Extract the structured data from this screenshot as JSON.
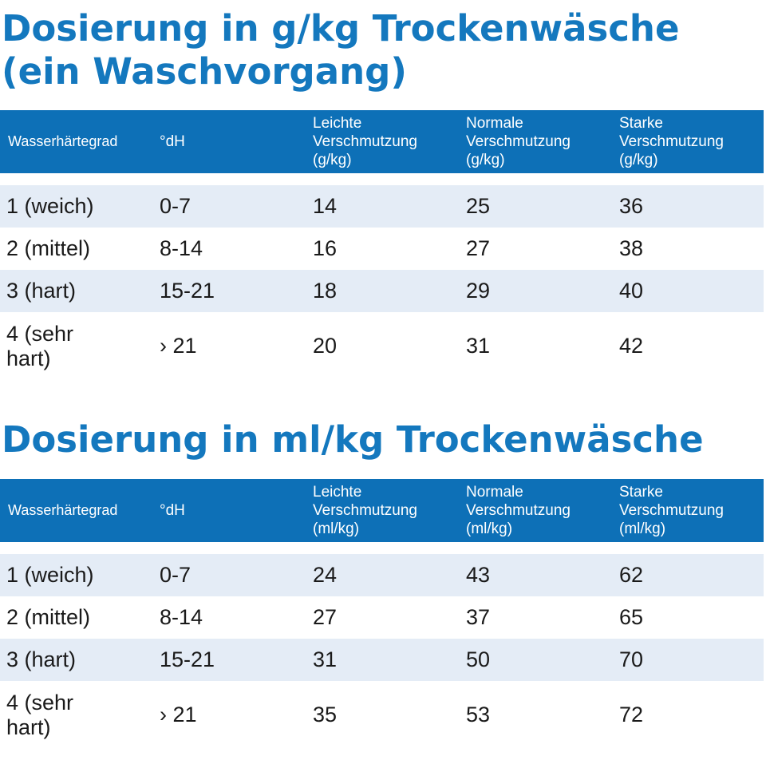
{
  "colors": {
    "accent": "#1478be",
    "header_bg": "#0d70b7",
    "row_shade": "#e4ecf6"
  },
  "sections": [
    {
      "title": "Dosierung in g/kg Trockenwäsche (ein Waschvorgang)",
      "headers": [
        "Wasserhärtegrad",
        "°dH",
        "Leichte\nVerschmutzung\n(g/kg)",
        "Normale\nVerschmutzung\n(g/kg)",
        "Starke\nVerschmutzung\n(g/kg)"
      ],
      "rows": [
        [
          "1 (weich)",
          "0-7",
          "14",
          "25",
          "36"
        ],
        [
          "2 (mittel)",
          "8-14",
          "16",
          "27",
          "38"
        ],
        [
          "3 (hart)",
          "15-21",
          "18",
          "29",
          "40"
        ],
        [
          "4 (sehr\nhart)",
          "› 21",
          "20",
          "31",
          "42"
        ]
      ]
    },
    {
      "title": "Dosierung in ml/kg Trockenwäsche",
      "headers": [
        "Wasserhärtegrad",
        "°dH",
        "Leichte\nVerschmutzung\n(ml/kg)",
        "Normale\nVerschmutzung\n(ml/kg)",
        "Starke\nVerschmutzung\n(ml/kg)"
      ],
      "rows": [
        [
          "1 (weich)",
          "0-7",
          "24",
          "43",
          "62"
        ],
        [
          "2 (mittel)",
          "8-14",
          "27",
          "37",
          "65"
        ],
        [
          "3 (hart)",
          "15-21",
          "31",
          "50",
          "70"
        ],
        [
          "4 (sehr\nhart)",
          "› 21",
          "35",
          "53",
          "72"
        ]
      ]
    }
  ]
}
